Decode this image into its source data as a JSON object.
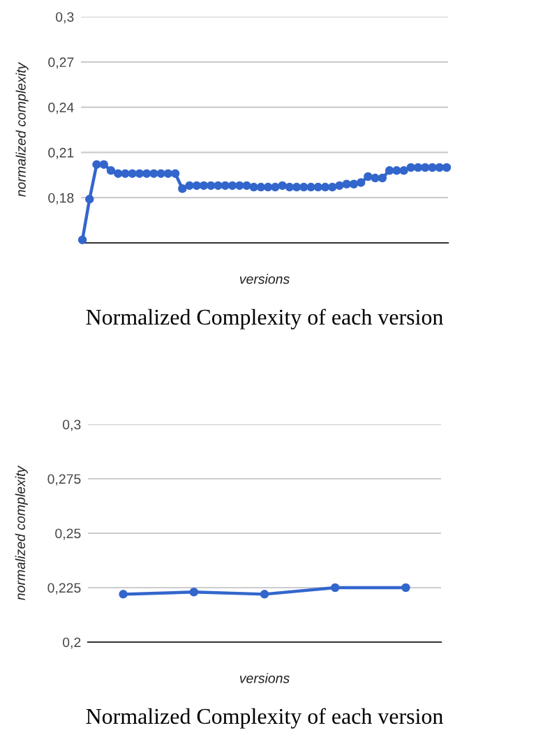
{
  "chart_data": [
    {
      "type": "line",
      "ylabel": "normalized complexity",
      "xlabel": "versions",
      "annotations": [
        "Normalized Complexity of each version"
      ],
      "categories": [
        null,
        null,
        null,
        null,
        null,
        null,
        null,
        null,
        null,
        null,
        null,
        null,
        null,
        null,
        null,
        null,
        null,
        null,
        null,
        null,
        null,
        null,
        null,
        null,
        null,
        null,
        null,
        null,
        null,
        null,
        null,
        null,
        null,
        null,
        null,
        null,
        null,
        null,
        null,
        null,
        null,
        null,
        null,
        null,
        null,
        null,
        null,
        null,
        null,
        null,
        null,
        null
      ],
      "series": [
        {
          "color": "#3366cc",
          "values": [
            0.152,
            0.179,
            0.202,
            0.202,
            0.198,
            0.196,
            0.196,
            0.196,
            0.196,
            0.196,
            0.196,
            0.196,
            0.196,
            0.196,
            0.186,
            0.188,
            0.188,
            0.188,
            0.188,
            0.188,
            0.188,
            0.188,
            0.188,
            0.188,
            0.187,
            0.187,
            0.187,
            0.187,
            0.188,
            0.187,
            0.187,
            0.187,
            0.187,
            0.187,
            0.187,
            0.187,
            0.188,
            0.189,
            0.189,
            0.19,
            0.194,
            0.193,
            0.193,
            0.198,
            0.198,
            0.198,
            0.2,
            0.2,
            0.2,
            0.2,
            0.2,
            0.2
          ]
        }
      ],
      "ylim": [
        0.15,
        0.3
      ],
      "yticks": [
        {
          "value": 0.15,
          "label": null
        },
        {
          "value": 0.18,
          "label": "0,18"
        },
        {
          "value": 0.21,
          "label": "0,21"
        },
        {
          "value": 0.24,
          "label": "0,24"
        },
        {
          "value": 0.27,
          "label": "0,27"
        },
        {
          "value": 0.3,
          "label": "0,3"
        }
      ],
      "grid": "y",
      "marker": "circle",
      "line_style": "solid",
      "tick_labels": "y"
    },
    {
      "type": "line",
      "ylabel": "normalized complexity",
      "xlabel": "versions",
      "annotations": [
        "Normalized Complexity of each version"
      ],
      "categories": [
        null,
        null,
        null,
        null,
        null
      ],
      "series": [
        {
          "color": "#3366cc",
          "values": [
            0.222,
            0.223,
            0.222,
            0.225,
            0.225
          ]
        }
      ],
      "ylim": [
        0.2,
        0.3
      ],
      "yticks": [
        {
          "value": 0.2,
          "label": "0,2"
        },
        {
          "value": 0.225,
          "label": "0,225"
        },
        {
          "value": 0.25,
          "label": "0,25"
        },
        {
          "value": 0.275,
          "label": "0,275"
        },
        {
          "value": 0.3,
          "label": "0,3"
        }
      ],
      "grid": "y",
      "marker": "circle",
      "line_style": "solid",
      "tick_labels": "y"
    }
  ]
}
